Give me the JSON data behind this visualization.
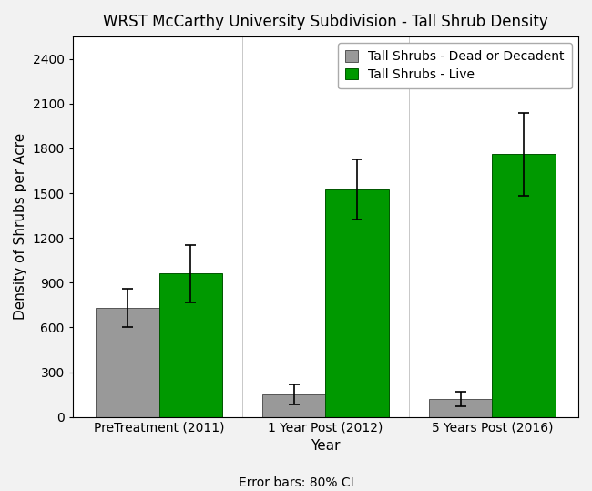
{
  "title": "WRST McCarthy University Subdivision - Tall Shrub Density",
  "xlabel": "Year",
  "ylabel": "Density of Shrubs per Acre",
  "categories": [
    "PreTreatment (2011)",
    "1 Year Post (2012)",
    "5 Years Post (2016)"
  ],
  "dead_values": [
    730,
    150,
    120
  ],
  "live_values": [
    960,
    1525,
    1760
  ],
  "dead_errors": [
    130,
    65,
    50
  ],
  "live_errors": [
    190,
    200,
    280
  ],
  "dead_color": "#999999",
  "live_color": "#009900",
  "dead_label": "Tall Shrubs - Dead or Decadent",
  "live_label": "Tall Shrubs - Live",
  "ylim": [
    0,
    2550
  ],
  "yticks": [
    0,
    300,
    600,
    900,
    1200,
    1500,
    1800,
    2100,
    2400
  ],
  "bar_width": 0.38,
  "error_capsize": 4,
  "footnote": "Error bars: 80% CI",
  "background_color": "#f2f2f2",
  "plot_bg_color": "#ffffff",
  "title_fontsize": 12,
  "axis_label_fontsize": 11,
  "tick_fontsize": 10,
  "legend_fontsize": 10,
  "footnote_fontsize": 10
}
